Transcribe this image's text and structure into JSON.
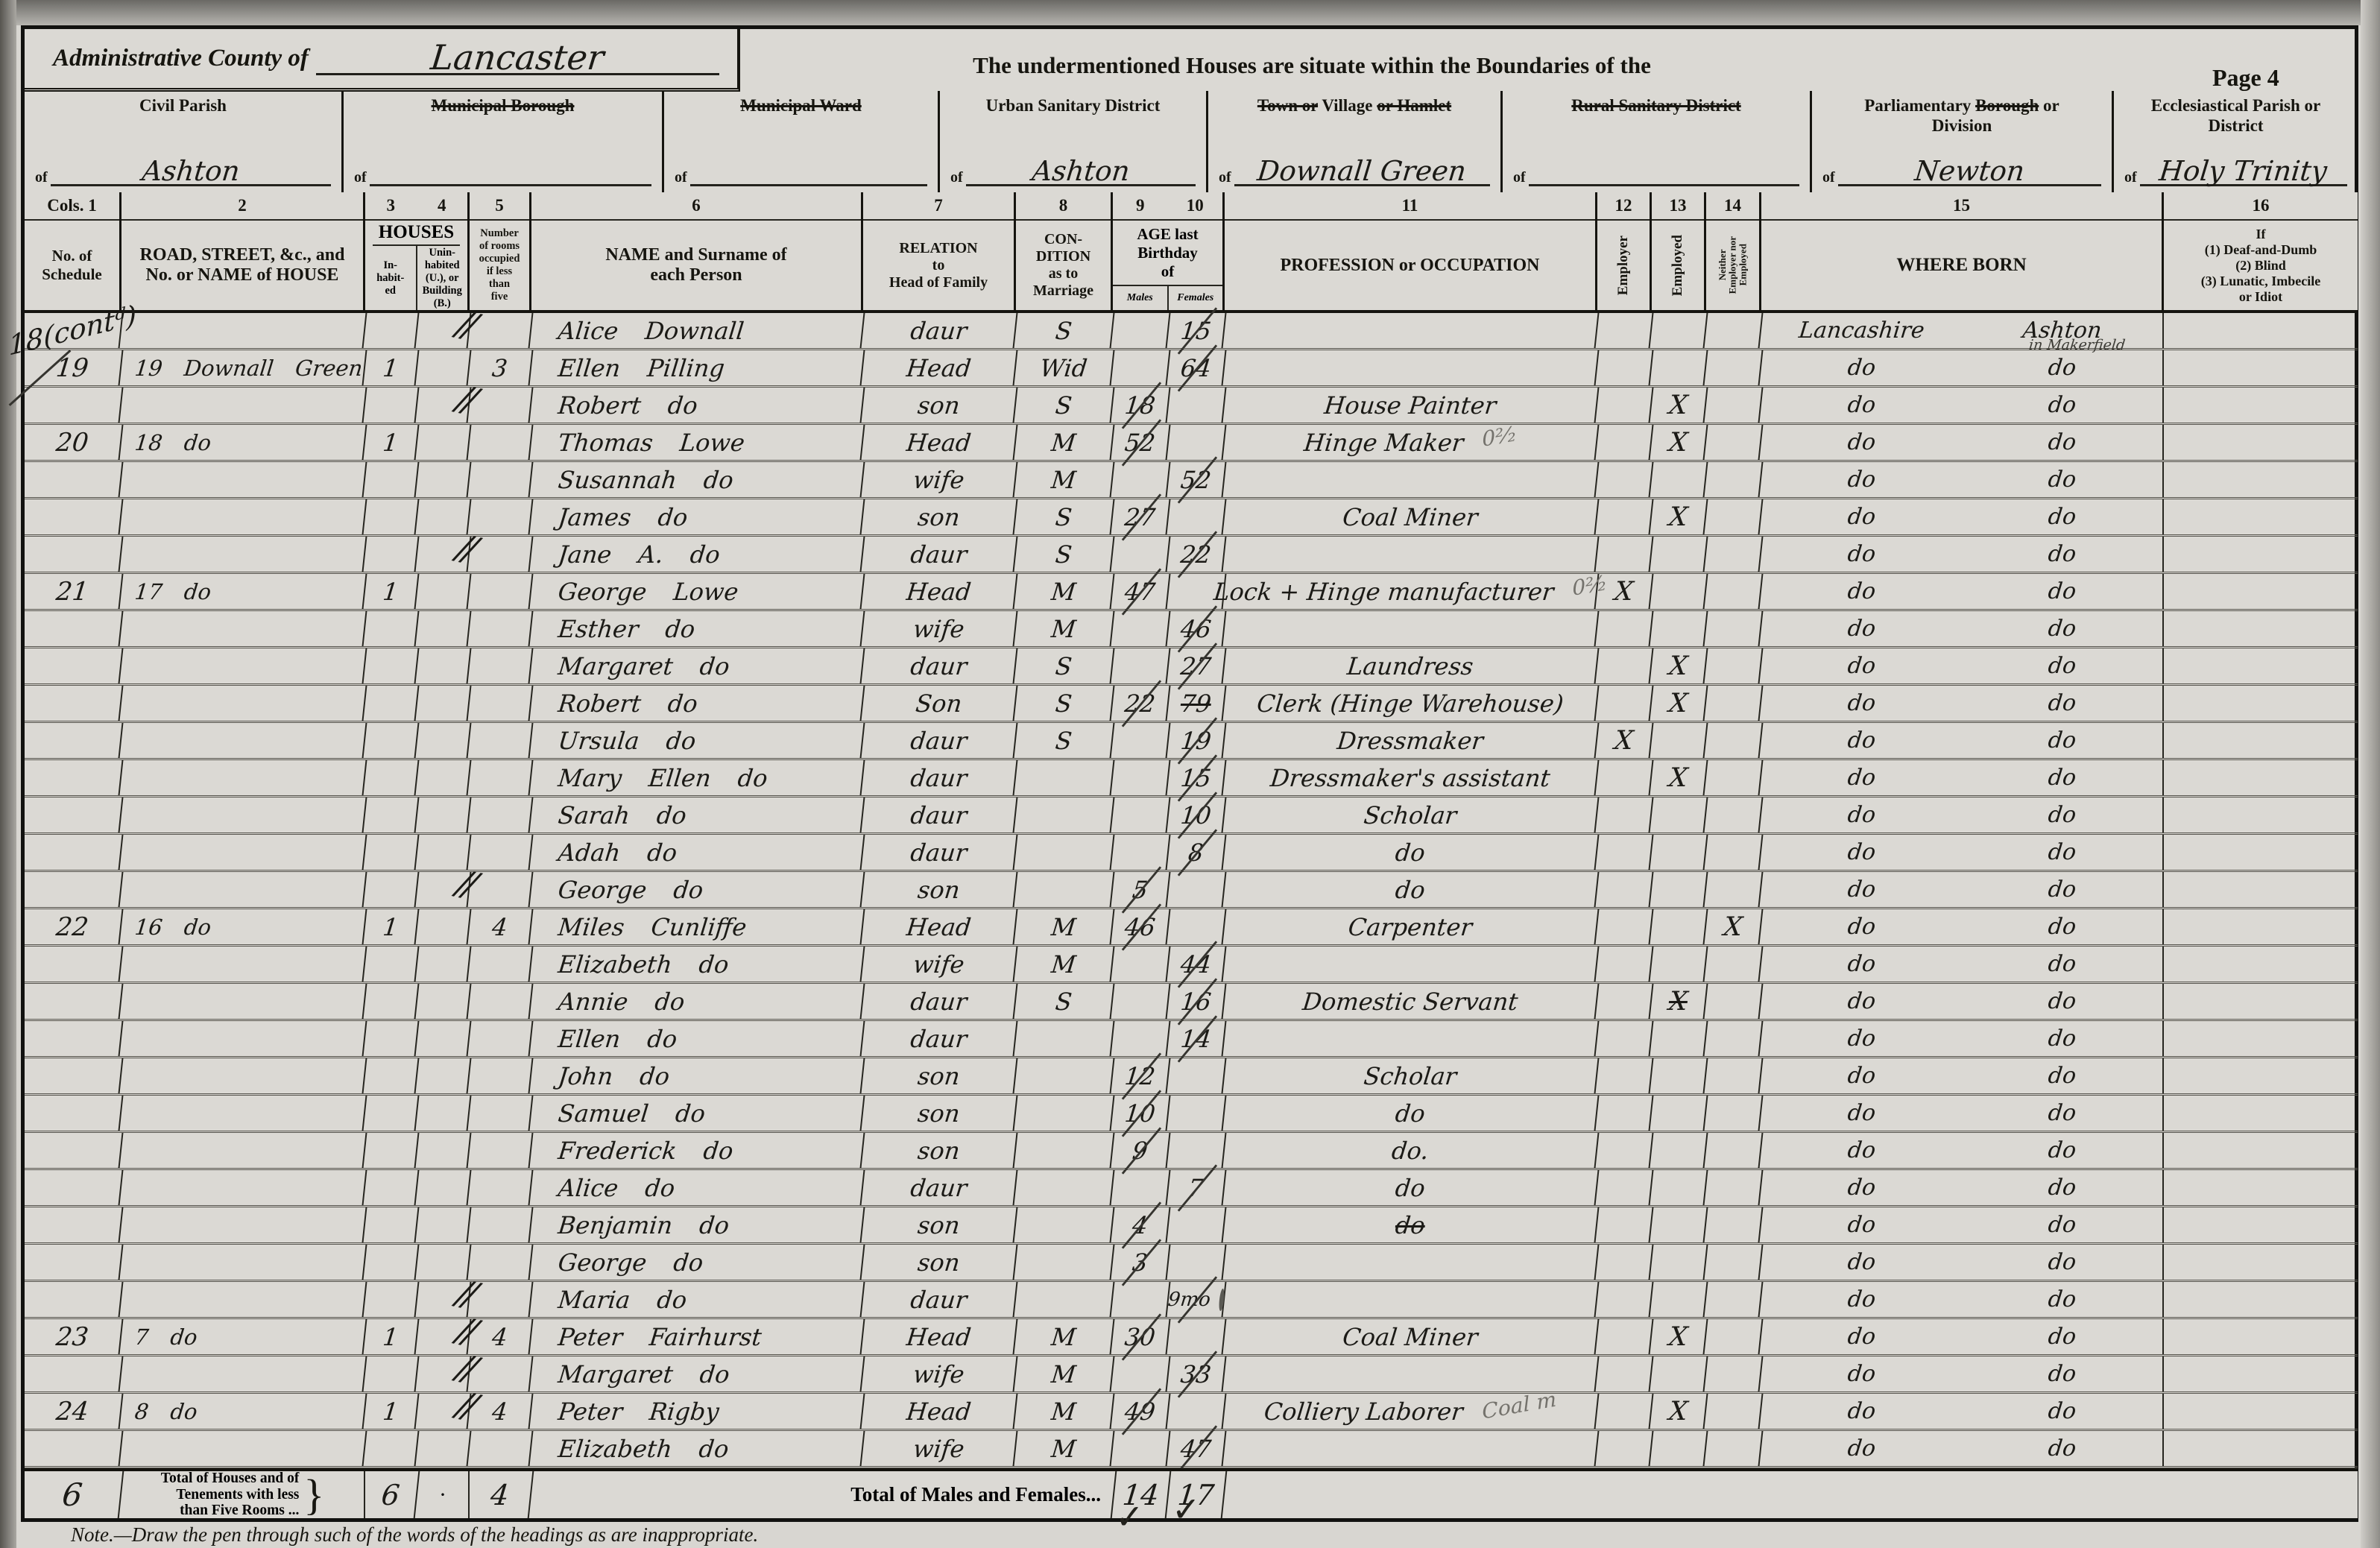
{
  "page": {
    "admin_county_label": "Administrative County of",
    "admin_county_value": "Lancaster",
    "heading_center": "The undermentioned Houses are situate within the Boundaries of the",
    "page_number": "Page 4",
    "of_label": "of",
    "note": "Note.—Draw the pen through such of the words of the headings as are inappropriate."
  },
  "district_boxes": [
    {
      "segments": [
        {
          "t": "Civil Parish",
          "s": false
        }
      ],
      "value": "Ashton"
    },
    {
      "segments": [
        {
          "t": "Municipal Borough",
          "s": true
        }
      ],
      "value": ""
    },
    {
      "segments": [
        {
          "t": "Municipal Ward",
          "s": true
        }
      ],
      "value": ""
    },
    {
      "segments": [
        {
          "t": "Urban Sanitary District",
          "s": false
        }
      ],
      "value": "Ashton"
    },
    {
      "segments": [
        {
          "t": "Town or",
          "s": true
        },
        {
          "t": " Village ",
          "s": false
        },
        {
          "t": "or Hamlet",
          "s": true
        }
      ],
      "value": "Downall Green"
    },
    {
      "segments": [
        {
          "t": "Rural Sanitary District",
          "s": true
        }
      ],
      "value": ""
    },
    {
      "segments": [
        {
          "t": "Parliamentary ",
          "s": false
        },
        {
          "t": "Borough",
          "s": true
        },
        {
          "t": " or",
          "s": false
        },
        {
          "t": "Division",
          "s": false,
          "br": true
        }
      ],
      "value": "Newton"
    },
    {
      "segments": [
        {
          "t": "Ecclesiastical Parish or",
          "s": false
        },
        {
          "t": "District",
          "s": false,
          "br": true
        }
      ],
      "value": "Holy Trinity"
    }
  ],
  "table_header": {
    "col_numbers": [
      "Cols. 1",
      "2",
      "3",
      "4",
      "5",
      "6",
      "7",
      "8",
      "9",
      "10",
      "11",
      "12",
      "13",
      "14",
      "15",
      "16"
    ],
    "col1_label": "No. of\nSchedule",
    "col2_label": "ROAD, STREET, &c., and\nNo. or NAME of HOUSE",
    "houses_label": "HOUSES",
    "col3_label": "In-\nhabit-\ned",
    "col4_label": "Unin-\nhabited\n(U.), or\nBuilding\n(B.)",
    "col5_label": "Number\nof rooms\noccupied\nif less\nthan\nfive",
    "col6_label": "NAME and Surname of\neach Person",
    "col7_label": "RELATION\nto\nHead of Family",
    "col8_label": "CON-\nDITION\nas to\nMarriage",
    "age_label": "AGE last\nBirthday\nof",
    "col9_label": "Males",
    "col10_label": "Females",
    "col11_label": "PROFESSION or OCCUPATION",
    "col12_label": "Employer",
    "col13_label": "Employed",
    "col14_label": "Neither\nEmployer nor\nEmployed",
    "col15_label": "WHERE BORN",
    "col16_label": "If\n(1) Deaf-and-Dumb\n(2) Blind\n(3) Lunatic, Imbecile\nor Idiot"
  },
  "rows": [
    {
      "sched": "18(contᵈ)",
      "schedRot": true,
      "slash": true,
      "name": "Alice Downall",
      "rel": "daur",
      "cond": "S",
      "ageF": "15",
      "born1": "Lancashire",
      "born2": "Ashton",
      "bornSub": "in Makerfield"
    },
    {
      "sched": "19",
      "road": "19 Downall Green",
      "inh": "1",
      "rooms": "3",
      "name": "Ellen Pilling",
      "rel": "Head",
      "cond": "Wid",
      "ageF": "64",
      "born1": "do",
      "born2": "do"
    },
    {
      "slash": true,
      "name": "Robert do",
      "rel": "son",
      "cond": "S",
      "ageM": "18",
      "occ": "House Painter",
      "m13": "X",
      "born1": "do",
      "born2": "do"
    },
    {
      "sched": "20",
      "road": "18 do",
      "inh": "1",
      "name": "Thomas Lowe",
      "rel": "Head",
      "cond": "M",
      "ageM": "52",
      "occ": "Hinge Maker",
      "occNote": "0²⁄₂",
      "m13": "X",
      "born1": "do",
      "born2": "do"
    },
    {
      "name": "Susannah do",
      "rel": "wife",
      "cond": "M",
      "ageF": "52",
      "born1": "do",
      "born2": "do"
    },
    {
      "name": "James do",
      "rel": "son",
      "cond": "S",
      "ageM": "27",
      "occ": "Coal Miner",
      "m13": "X",
      "born1": "do",
      "born2": "do"
    },
    {
      "slash": true,
      "name": "Jane A. do",
      "rel": "daur",
      "cond": "S",
      "ageF": "22",
      "born1": "do",
      "born2": "do"
    },
    {
      "sched": "21",
      "road": "17 do",
      "inh": "1",
      "name": "George Lowe",
      "rel": "Head",
      "cond": "M",
      "ageM": "47",
      "occ": "Lock + Hinge manufacturer",
      "occNote": "0²⁄₂",
      "m12": "X",
      "born1": "do",
      "born2": "do"
    },
    {
      "name": "Esther do",
      "rel": "wife",
      "cond": "M",
      "ageF": "46",
      "born1": "do",
      "born2": "do"
    },
    {
      "name": "Margaret do",
      "rel": "daur",
      "cond": "S",
      "ageF": "27",
      "occ": "Laundress",
      "m13": "X",
      "born1": "do",
      "born2": "do"
    },
    {
      "name": "Robert do",
      "rel": "Son",
      "cond": "S",
      "ageM": "22",
      "ageFStruck": "79",
      "occ": "Clerk (Hinge Warehouse)",
      "m13": "X",
      "born1": "do",
      "born2": "do"
    },
    {
      "name": "Ursula do",
      "rel": "daur",
      "cond": "S",
      "ageF": "19",
      "occ": "Dressmaker",
      "m12": "X",
      "born1": "do",
      "born2": "do"
    },
    {
      "name": "Mary Ellen do",
      "rel": "daur",
      "ageF": "15",
      "occ": "Dressmaker's assistant",
      "m13": "X",
      "born1": "do",
      "born2": "do"
    },
    {
      "name": "Sarah do",
      "rel": "daur",
      "ageF": "10",
      "occ": "Scholar",
      "born1": "do",
      "born2": "do"
    },
    {
      "name": "Adah do",
      "rel": "daur",
      "ageF": "8",
      "occ": "do",
      "born1": "do",
      "born2": "do"
    },
    {
      "slash": true,
      "name": "George do",
      "rel": "son",
      "ageM": "5",
      "occ": "do",
      "born1": "do",
      "born2": "do"
    },
    {
      "sched": "22",
      "road": "16 do",
      "inh": "1",
      "rooms": "4",
      "name": "Miles Cunliffe",
      "rel": "Head",
      "cond": "M",
      "ageM": "46",
      "occ": "Carpenter",
      "m14": "X",
      "born1": "do",
      "born2": "do"
    },
    {
      "name": "Elizabeth do",
      "rel": "wife",
      "cond": "M",
      "ageF": "44",
      "born1": "do",
      "born2": "do"
    },
    {
      "name": "Annie do",
      "rel": "daur",
      "cond": "S",
      "ageF": "16",
      "occ": "Domestic Servant",
      "m13": "X",
      "m13Struck": true,
      "born1": "do",
      "born2": "do"
    },
    {
      "name": "Ellen do",
      "rel": "daur",
      "ageF": "14",
      "born1": "do",
      "born2": "do"
    },
    {
      "name": "John do",
      "rel": "son",
      "ageM": "12",
      "occ": "Scholar",
      "born1": "do",
      "born2": "do"
    },
    {
      "name": "Samuel do",
      "rel": "son",
      "ageM": "10",
      "occ": "do",
      "born1": "do",
      "born2": "do"
    },
    {
      "name": "Frederick do",
      "rel": "son",
      "ageM": "9",
      "occ": "do.",
      "born1": "do",
      "born2": "do"
    },
    {
      "name": "Alice do",
      "rel": "daur",
      "ageF": "7",
      "occ": "do",
      "born1": "do",
      "born2": "do"
    },
    {
      "name": "Benjamin do",
      "rel": "son",
      "ageM": "4",
      "occ": "do",
      "occStruck": true,
      "born1": "do",
      "born2": "do"
    },
    {
      "name": "George do",
      "rel": "son",
      "ageM": "3",
      "born1": "do",
      "born2": "do"
    },
    {
      "slash": true,
      "name": "Maria do",
      "rel": "daur",
      "ageF": "9mo",
      "ageCircle": true,
      "born1": "do",
      "born2": "do"
    },
    {
      "sched": "23",
      "road": "7 do",
      "inh": "1",
      "rooms": "4",
      "slash": true,
      "name": "Peter Fairhurst",
      "rel": "Head",
      "cond": "M",
      "ageM": "30",
      "occ": "Coal Miner",
      "m13": "X",
      "born1": "do",
      "born2": "do"
    },
    {
      "slash": true,
      "name": "Margaret do",
      "rel": "wife",
      "cond": "M",
      "ageF": "33",
      "born1": "do",
      "born2": "do"
    },
    {
      "sched": "24",
      "road": "8 do",
      "inh": "1",
      "rooms": "4",
      "slash": true,
      "name": "Peter Rigby",
      "rel": "Head",
      "cond": "M",
      "ageM": "49",
      "occ": "Colliery Laborer",
      "occNote": "Coal m",
      "m13": "X",
      "born1": "do",
      "born2": "do"
    },
    {
      "name": "Elizabeth do",
      "rel": "wife",
      "cond": "M",
      "ageF": "47",
      "born1": "do",
      "born2": "do"
    }
  ],
  "totals": {
    "schedule_total": "6",
    "houses_label": "Total of Houses and of\nTenements with less\nthan Five Rooms ...",
    "brace": "}",
    "inhabited_total": "6",
    "uninhabited_dot": "·",
    "rooms_total": "4",
    "males_females_label": "Total of Males and Females...",
    "males_total": "14",
    "females_total": "17"
  },
  "marks": {
    "checkmarks": [
      "✓",
      "✓"
    ]
  }
}
